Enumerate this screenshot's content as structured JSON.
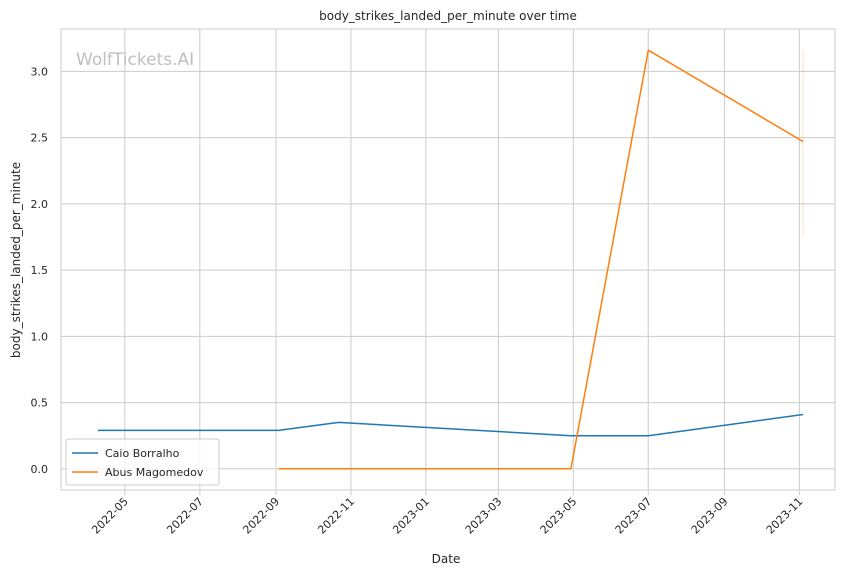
{
  "chart_data": {
    "type": "line",
    "title": "body_strikes_landed_per_minute over time",
    "xlabel": "Date",
    "ylabel": "body_strikes_landed_per_minute",
    "watermark": "WolfTickets.AI",
    "x_ticks": [
      "2022-05",
      "2022-07",
      "2022-09",
      "2022-11",
      "2023-01",
      "2023-03",
      "2023-05",
      "2023-07",
      "2023-09",
      "2023-11"
    ],
    "y_ticks": [
      "0.0",
      "0.5",
      "1.0",
      "1.5",
      "2.0",
      "2.5",
      "3.0"
    ],
    "xlim": [
      "2022-03-10",
      "2023-11-30"
    ],
    "ylim": [
      -0.16,
      3.32
    ],
    "grid": true,
    "legend_position": "lower-left",
    "series": [
      {
        "name": "Caio Borralho",
        "color": "#1f77b4",
        "points": [
          {
            "x": "2022-04-09",
            "y": 0.29
          },
          {
            "x": "2022-09-03",
            "y": 0.29
          },
          {
            "x": "2022-10-22",
            "y": 0.35
          },
          {
            "x": "2023-04-29",
            "y": 0.25
          },
          {
            "x": "2023-07-01",
            "y": 0.25
          },
          {
            "x": "2023-11-04",
            "y": 0.41
          }
        ]
      },
      {
        "name": "Abus Magomedov",
        "color": "#ff7f0e",
        "points": [
          {
            "x": "2022-09-03",
            "y": 0.0
          },
          {
            "x": "2023-04-29",
            "y": 0.0
          },
          {
            "x": "2023-07-01",
            "y": 3.16
          },
          {
            "x": "2023-11-04",
            "y": 2.47
          }
        ],
        "error_band": {
          "x": "2023-11-04",
          "low": 1.76,
          "high": 3.16
        }
      }
    ]
  }
}
